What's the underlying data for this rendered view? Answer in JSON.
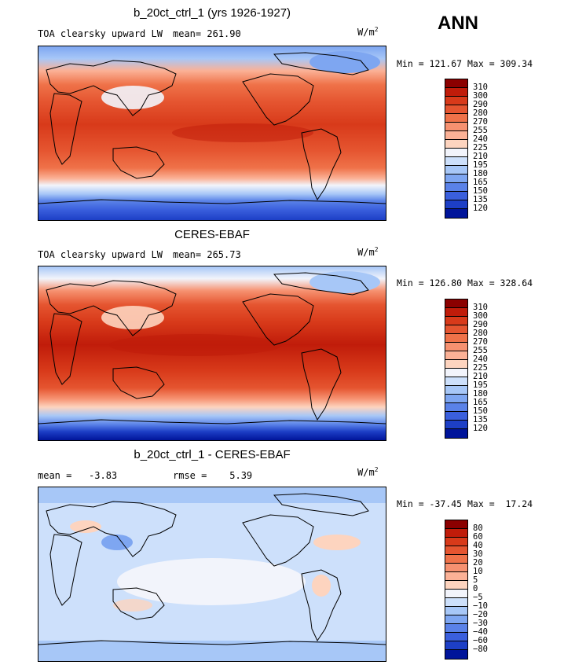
{
  "season": "ANN",
  "panels": [
    {
      "title": "b_20ct_ctrl_1 (yrs 1926-1927)",
      "variable": "TOA clearsky upward LW",
      "stat": "mean= 261.90",
      "units": "W/m",
      "units_exp": "2",
      "minmax": "Min = 121.67 Max = 309.34",
      "colorbar_ticks": [
        "310",
        "300",
        "290",
        "280",
        "270",
        "255",
        "240",
        "225",
        "210",
        "195",
        "180",
        "165",
        "150",
        "135",
        "120"
      ],
      "colorbar_colors": [
        "#8b0000",
        "#c01c0a",
        "#d83a1a",
        "#e55530",
        "#ef7249",
        "#f69170",
        "#fbb196",
        "#fdd4bf",
        "#f2f4fb",
        "#cde0fb",
        "#a7c7f7",
        "#7ea6f1",
        "#5a82e8",
        "#3a5fdd",
        "#1d3fc6",
        "#00149a"
      ]
    },
    {
      "title": "CERES-EBAF",
      "variable": "TOA clearsky upward LW",
      "stat": "mean= 265.73",
      "units": "W/m",
      "units_exp": "2",
      "minmax": "Min = 126.80 Max = 328.64",
      "colorbar_ticks": [
        "310",
        "300",
        "290",
        "280",
        "270",
        "255",
        "240",
        "225",
        "210",
        "195",
        "180",
        "165",
        "150",
        "135",
        "120"
      ],
      "colorbar_colors": [
        "#8b0000",
        "#c01c0a",
        "#d83a1a",
        "#e55530",
        "#ef7249",
        "#f69170",
        "#fbb196",
        "#fdd4bf",
        "#f2f4fb",
        "#cde0fb",
        "#a7c7f7",
        "#7ea6f1",
        "#5a82e8",
        "#3a5fdd",
        "#1d3fc6",
        "#00149a"
      ]
    },
    {
      "title": "b_20ct_ctrl_1 - CERES-EBAF",
      "mean_text": "mean =   -3.83",
      "rmse_text": "rmse =    5.39",
      "units": "W/m",
      "units_exp": "2",
      "minmax": "Min = -37.45 Max =  17.24",
      "colorbar_ticks": [
        "80",
        "60",
        "40",
        "30",
        "20",
        "10",
        "5",
        "0",
        "−5",
        "−10",
        "−20",
        "−30",
        "−40",
        "−60",
        "−80"
      ],
      "colorbar_colors": [
        "#8b0000",
        "#c01c0a",
        "#d83a1a",
        "#e55530",
        "#ef7249",
        "#f69170",
        "#fbb196",
        "#fdd4bf",
        "#f2f4fb",
        "#cde0fb",
        "#a7c7f7",
        "#7ea6f1",
        "#5a82e8",
        "#3a5fdd",
        "#1d3fc6",
        "#00149a"
      ]
    }
  ],
  "colors": {
    "land_outline": "#000000",
    "frame": "#000000"
  }
}
